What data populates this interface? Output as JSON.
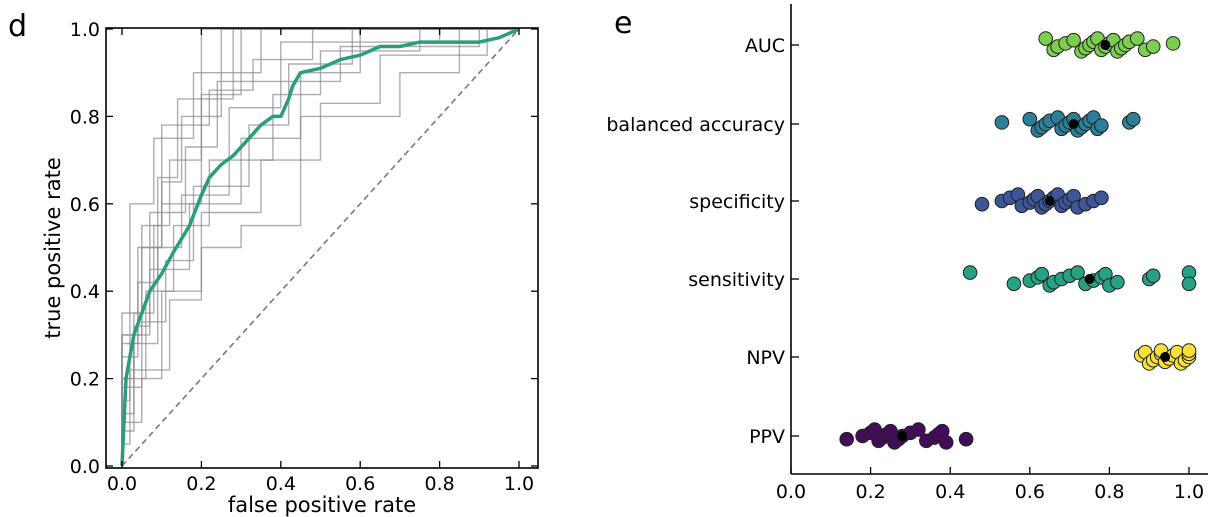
{
  "panels": {
    "d": {
      "letter": "d",
      "chart_data": {
        "type": "line",
        "xlabel": "false positive rate",
        "ylabel": "true positive rate",
        "xlim": [
          0.0,
          1.0
        ],
        "ylim": [
          0.0,
          1.0
        ],
        "xticks": [
          "0.0",
          "0.2",
          "0.4",
          "0.6",
          "0.8",
          "1.0"
        ],
        "yticks": [
          "0.0",
          "0.2",
          "0.4",
          "0.6",
          "0.8",
          "1.0"
        ],
        "grid": false,
        "colors": {
          "mean": "#2a9d7e",
          "folds": "#8c8c8c",
          "chance": "#7a7a7a"
        },
        "chance_line": [
          [
            0,
            0
          ],
          [
            1,
            1
          ]
        ],
        "mean_curve": {
          "x": [
            0.0,
            0.005,
            0.01,
            0.02,
            0.03,
            0.05,
            0.07,
            0.1,
            0.13,
            0.15,
            0.17,
            0.2,
            0.22,
            0.25,
            0.28,
            0.3,
            0.33,
            0.35,
            0.38,
            0.4,
            0.42,
            0.43,
            0.45,
            0.5,
            0.55,
            0.6,
            0.65,
            0.7,
            0.75,
            0.8,
            0.85,
            0.9,
            0.95,
            1.0
          ],
          "y": [
            0.0,
            0.1,
            0.2,
            0.25,
            0.3,
            0.35,
            0.4,
            0.44,
            0.49,
            0.52,
            0.55,
            0.62,
            0.66,
            0.69,
            0.71,
            0.73,
            0.76,
            0.78,
            0.8,
            0.8,
            0.84,
            0.87,
            0.9,
            0.91,
            0.93,
            0.94,
            0.96,
            0.96,
            0.97,
            0.97,
            0.97,
            0.97,
            0.98,
            1.0
          ]
        },
        "fold_curves": [
          [
            [
              0,
              0
            ],
            [
              0,
              0.3
            ],
            [
              0.05,
              0.3
            ],
            [
              0.05,
              0.5
            ],
            [
              0.1,
              0.5
            ],
            [
              0.1,
              0.65
            ],
            [
              0.15,
              0.65
            ],
            [
              0.15,
              0.8
            ],
            [
              0.25,
              0.8
            ],
            [
              0.25,
              0.9
            ],
            [
              0.35,
              0.9
            ],
            [
              0.35,
              1
            ],
            [
              1,
              1
            ]
          ],
          [
            [
              0,
              0
            ],
            [
              0,
              0.2
            ],
            [
              0.03,
              0.2
            ],
            [
              0.03,
              0.35
            ],
            [
              0.08,
              0.35
            ],
            [
              0.08,
              0.55
            ],
            [
              0.12,
              0.55
            ],
            [
              0.12,
              0.7
            ],
            [
              0.2,
              0.7
            ],
            [
              0.2,
              1
            ],
            [
              1,
              1
            ]
          ],
          [
            [
              0,
              0
            ],
            [
              0,
              0.15
            ],
            [
              0.02,
              0.15
            ],
            [
              0.02,
              0.3
            ],
            [
              0.07,
              0.3
            ],
            [
              0.07,
              0.45
            ],
            [
              0.17,
              0.45
            ],
            [
              0.17,
              0.6
            ],
            [
              0.3,
              0.6
            ],
            [
              0.3,
              0.75
            ],
            [
              0.45,
              0.75
            ],
            [
              0.45,
              0.9
            ],
            [
              0.6,
              0.9
            ],
            [
              0.6,
              1
            ],
            [
              1,
              1
            ]
          ],
          [
            [
              0,
              0
            ],
            [
              0,
              0.25
            ],
            [
              0.04,
              0.25
            ],
            [
              0.04,
              0.5
            ],
            [
              0.1,
              0.5
            ],
            [
              0.1,
              0.6
            ],
            [
              0.2,
              0.6
            ],
            [
              0.2,
              0.85
            ],
            [
              0.3,
              0.85
            ],
            [
              0.3,
              1
            ],
            [
              1,
              1
            ]
          ],
          [
            [
              0,
              0
            ],
            [
              0,
              0.1
            ],
            [
              0.05,
              0.1
            ],
            [
              0.05,
              0.2
            ],
            [
              0.1,
              0.2
            ],
            [
              0.1,
              0.4
            ],
            [
              0.2,
              0.4
            ],
            [
              0.2,
              0.5
            ],
            [
              0.3,
              0.5
            ],
            [
              0.3,
              0.55
            ],
            [
              0.45,
              0.55
            ],
            [
              0.45,
              0.8
            ],
            [
              0.7,
              0.8
            ],
            [
              0.7,
              0.9
            ],
            [
              0.85,
              0.9
            ],
            [
              0.85,
              1
            ],
            [
              1,
              1
            ]
          ],
          [
            [
              0,
              0
            ],
            [
              0,
              0.3
            ],
            [
              0.02,
              0.3
            ],
            [
              0.02,
              0.6
            ],
            [
              0.08,
              0.6
            ],
            [
              0.08,
              0.75
            ],
            [
              0.18,
              0.75
            ],
            [
              0.18,
              0.9
            ],
            [
              0.25,
              0.9
            ],
            [
              0.25,
              1
            ],
            [
              1,
              1
            ]
          ],
          [
            [
              0,
              0
            ],
            [
              0,
              0.2
            ],
            [
              0.06,
              0.2
            ],
            [
              0.06,
              0.4
            ],
            [
              0.13,
              0.4
            ],
            [
              0.13,
              0.55
            ],
            [
              0.22,
              0.55
            ],
            [
              0.22,
              0.7
            ],
            [
              0.38,
              0.7
            ],
            [
              0.38,
              0.85
            ],
            [
              0.5,
              0.85
            ],
            [
              0.5,
              0.95
            ],
            [
              0.75,
              0.95
            ],
            [
              0.75,
              1
            ],
            [
              1,
              1
            ]
          ],
          [
            [
              0,
              0
            ],
            [
              0,
              0.12
            ],
            [
              0.03,
              0.12
            ],
            [
              0.03,
              0.28
            ],
            [
              0.09,
              0.28
            ],
            [
              0.09,
              0.5
            ],
            [
              0.15,
              0.5
            ],
            [
              0.15,
              0.62
            ],
            [
              0.27,
              0.62
            ],
            [
              0.27,
              0.82
            ],
            [
              0.4,
              0.82
            ],
            [
              0.4,
              0.88
            ],
            [
              0.55,
              0.88
            ],
            [
              0.55,
              0.96
            ],
            [
              0.9,
              0.96
            ],
            [
              0.9,
              1
            ],
            [
              1,
              1
            ]
          ],
          [
            [
              0,
              0
            ],
            [
              0,
              0.35
            ],
            [
              0.05,
              0.35
            ],
            [
              0.05,
              0.55
            ],
            [
              0.1,
              0.55
            ],
            [
              0.1,
              0.78
            ],
            [
              0.22,
              0.78
            ],
            [
              0.22,
              0.86
            ],
            [
              0.33,
              0.86
            ],
            [
              0.33,
              0.93
            ],
            [
              0.48,
              0.93
            ],
            [
              0.48,
              1
            ],
            [
              1,
              1
            ]
          ],
          [
            [
              0,
              0
            ],
            [
              0,
              0.05
            ],
            [
              0.02,
              0.05
            ],
            [
              0.02,
              0.22
            ],
            [
              0.12,
              0.22
            ],
            [
              0.12,
              0.38
            ],
            [
              0.2,
              0.38
            ],
            [
              0.2,
              0.58
            ],
            [
              0.35,
              0.58
            ],
            [
              0.35,
              0.7
            ],
            [
              0.5,
              0.7
            ],
            [
              0.5,
              0.83
            ],
            [
              0.65,
              0.83
            ],
            [
              0.65,
              0.94
            ],
            [
              0.92,
              0.94
            ],
            [
              0.92,
              1
            ],
            [
              1,
              1
            ]
          ],
          [
            [
              0,
              0
            ],
            [
              0,
              0.28
            ],
            [
              0.04,
              0.28
            ],
            [
              0.04,
              0.42
            ],
            [
              0.09,
              0.42
            ],
            [
              0.09,
              0.66
            ],
            [
              0.14,
              0.66
            ],
            [
              0.14,
              0.84
            ],
            [
              0.28,
              0.84
            ],
            [
              0.28,
              1
            ],
            [
              1,
              1
            ]
          ],
          [
            [
              0,
              0
            ],
            [
              0,
              0.18
            ],
            [
              0.05,
              0.18
            ],
            [
              0.05,
              0.33
            ],
            [
              0.11,
              0.33
            ],
            [
              0.11,
              0.47
            ],
            [
              0.18,
              0.47
            ],
            [
              0.18,
              0.64
            ],
            [
              0.32,
              0.64
            ],
            [
              0.32,
              0.78
            ],
            [
              0.42,
              0.78
            ],
            [
              0.42,
              0.92
            ],
            [
              0.58,
              0.92
            ],
            [
              0.58,
              1
            ],
            [
              1,
              1
            ]
          ],
          [
            [
              0,
              0
            ],
            [
              0,
              0.08
            ],
            [
              0.03,
              0.08
            ],
            [
              0.03,
              0.32
            ],
            [
              0.07,
              0.32
            ],
            [
              0.07,
              0.58
            ],
            [
              0.16,
              0.58
            ],
            [
              0.16,
              0.73
            ],
            [
              0.24,
              0.73
            ],
            [
              0.24,
              0.88
            ],
            [
              0.4,
              0.88
            ],
            [
              0.4,
              0.97
            ],
            [
              0.8,
              0.97
            ],
            [
              0.8,
              1
            ],
            [
              1,
              1
            ]
          ]
        ]
      }
    },
    "e": {
      "letter": "e",
      "chart_data": {
        "type": "scatter",
        "xlim": [
          0.0,
          1.0
        ],
        "xticks": [
          "0.0",
          "0.2",
          "0.4",
          "0.6",
          "0.8",
          "1.0"
        ],
        "grid": false,
        "categories": [
          "AUC",
          "balanced accuracy",
          "specificity",
          "sensitivity",
          "NPV",
          "PPV"
        ],
        "series": [
          {
            "category": "AUC",
            "color": "#7ccf4e",
            "mean": 0.79,
            "values": [
              0.64,
              0.66,
              0.67,
              0.69,
              0.71,
              0.73,
              0.74,
              0.75,
              0.76,
              0.77,
              0.78,
              0.79,
              0.8,
              0.81,
              0.82,
              0.83,
              0.84,
              0.85,
              0.87,
              0.89,
              0.91,
              0.96
            ]
          },
          {
            "category": "balanced accuracy",
            "color": "#2b7f98",
            "mean": 0.71,
            "values": [
              0.53,
              0.6,
              0.62,
              0.63,
              0.64,
              0.65,
              0.67,
              0.68,
              0.69,
              0.7,
              0.71,
              0.72,
              0.73,
              0.74,
              0.75,
              0.76,
              0.77,
              0.78,
              0.85,
              0.86
            ]
          },
          {
            "category": "specificity",
            "color": "#3c5698",
            "mean": 0.65,
            "values": [
              0.48,
              0.53,
              0.55,
              0.57,
              0.58,
              0.6,
              0.61,
              0.62,
              0.63,
              0.64,
              0.65,
              0.66,
              0.67,
              0.68,
              0.69,
              0.7,
              0.71,
              0.72,
              0.74,
              0.76,
              0.78
            ]
          },
          {
            "category": "sensitivity",
            "color": "#26a184",
            "mean": 0.75,
            "values": [
              0.45,
              0.56,
              0.6,
              0.62,
              0.63,
              0.65,
              0.66,
              0.68,
              0.7,
              0.72,
              0.74,
              0.76,
              0.78,
              0.79,
              0.8,
              0.82,
              0.9,
              0.91,
              1.0,
              1.0
            ]
          },
          {
            "category": "NPV",
            "color": "#f7e03a",
            "mean": 0.94,
            "values": [
              0.88,
              0.89,
              0.9,
              0.91,
              0.92,
              0.93,
              0.93,
              0.94,
              0.95,
              0.96,
              0.97,
              0.98,
              0.99,
              1.0,
              1.0,
              1.0
            ]
          },
          {
            "category": "PPV",
            "color": "#440a5c",
            "mean": 0.28,
            "values": [
              0.14,
              0.18,
              0.2,
              0.21,
              0.22,
              0.23,
              0.24,
              0.25,
              0.26,
              0.27,
              0.28,
              0.3,
              0.32,
              0.34,
              0.36,
              0.37,
              0.38,
              0.39,
              0.44
            ]
          }
        ]
      }
    }
  }
}
